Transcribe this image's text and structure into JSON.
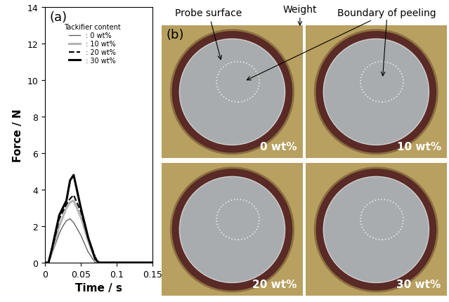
{
  "chart_data": {
    "type": "line",
    "panel_label": "(a)",
    "x_label": "Time / s",
    "y_label": "Force / N",
    "legend_title": "Tackifier content",
    "legend": "upper left",
    "x": [
      0,
      0.005,
      0.01,
      0.02,
      0.025,
      0.03,
      0.035,
      0.04,
      0.05,
      0.06,
      0.07,
      0.075,
      0.1,
      0.15
    ],
    "series": [
      {
        "name": ": 0 wt%",
        "color": "#555555",
        "line_style": "solid",
        "values": [
          0,
          0,
          0.5,
          1.6,
          2.0,
          2.3,
          2.4,
          2.2,
          1.5,
          0.6,
          0,
          0,
          0,
          0
        ]
      },
      {
        "name": ": 10 wt%",
        "color": "#b4b4b4",
        "line_style": "solid",
        "values": [
          0,
          0,
          0.6,
          2.0,
          2.5,
          3.0,
          3.3,
          3.4,
          2.5,
          1.2,
          0.2,
          0,
          0,
          0
        ]
      },
      {
        "name": ": 20 wt%",
        "color": "#000000",
        "line_style": "dashed",
        "values": [
          0,
          0,
          0.7,
          2.4,
          2.8,
          3.2,
          3.5,
          3.7,
          2.8,
          1.4,
          0.3,
          0,
          0,
          0
        ]
      },
      {
        "name": ": 30 wt%",
        "color": "#000000",
        "line_style": "solid",
        "values": [
          0,
          0,
          0.8,
          2.6,
          3.0,
          3.4,
          4.5,
          4.8,
          3.0,
          1.4,
          0.2,
          0,
          0,
          0
        ]
      }
    ],
    "xlim": [
      0,
      0.15
    ],
    "xticks": [
      0,
      0.05,
      0.1,
      0.15
    ],
    "ylim": [
      0,
      14
    ],
    "yticks": [
      0,
      2,
      4,
      6,
      8,
      10,
      12,
      14
    ],
    "grid": false
  },
  "photo_panel": {
    "panel_label": "(b)",
    "annotations": [
      "Probe surface",
      "Weight",
      "Boundary of peeling"
    ],
    "images": [
      "0 wt%",
      "10 wt%",
      "20 wt%",
      "30 wt%"
    ]
  }
}
